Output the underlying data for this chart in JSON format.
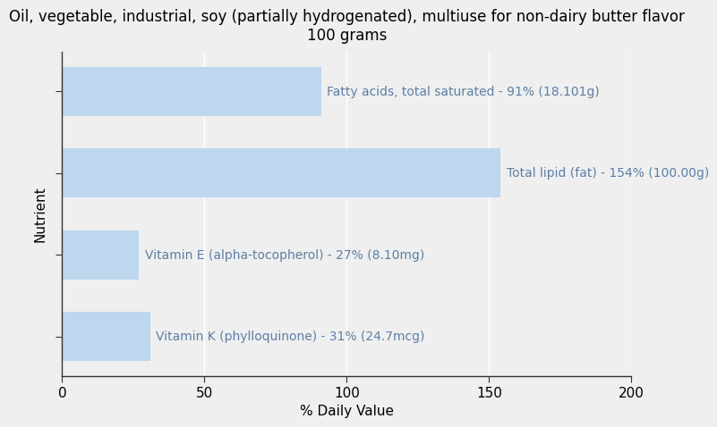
{
  "title": "Oil, vegetable, industrial, soy (partially hydrogenated), multiuse for non-dairy butter flavor\n100 grams",
  "xlabel": "% Daily Value",
  "ylabel": "Nutrient",
  "bar_color": "#bdd7ee",
  "background_color": "#efefef",
  "xlim": [
    0,
    200
  ],
  "xticks": [
    0,
    50,
    100,
    150,
    200
  ],
  "categories": [
    "Vitamin K (phylloquinone)",
    "Vitamin E (alpha-tocopherol)",
    "Total lipid (fat)",
    "Fatty acids, total saturated"
  ],
  "values": [
    31,
    27,
    154,
    91
  ],
  "labels": [
    "Vitamin K (phylloquinone) - 31% (24.7mcg)",
    "Vitamin E (alpha-tocopherol) - 27% (8.10mg)",
    "Total lipid (fat) - 154% (100.00g)",
    "Fatty acids, total saturated - 91% (18.101g)"
  ],
  "label_color": "#5b7fa6",
  "title_fontsize": 12,
  "axis_label_fontsize": 11,
  "tick_fontsize": 11,
  "bar_label_fontsize": 10,
  "grid_color": "#ffffff",
  "spine_color": "#333333"
}
